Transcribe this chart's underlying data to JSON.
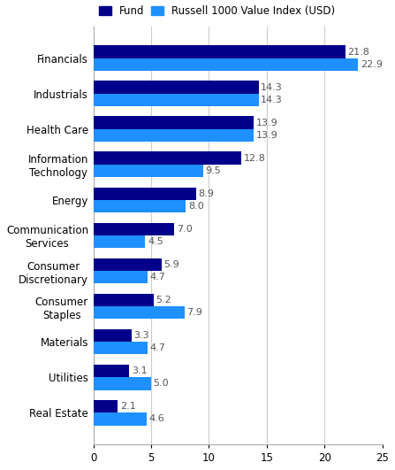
{
  "categories": [
    "Financials",
    "Industrials",
    "Health Care",
    "Information\nTechnology",
    "Energy",
    "Communication\nServices",
    "Consumer\nDiscretionary",
    "Consumer\nStaples",
    "Materials",
    "Utilities",
    "Real Estate"
  ],
  "fund_values": [
    21.8,
    14.3,
    13.9,
    12.8,
    8.9,
    7.0,
    5.9,
    5.2,
    3.3,
    3.1,
    2.1
  ],
  "index_values": [
    22.9,
    14.3,
    13.9,
    9.5,
    8.0,
    4.5,
    4.7,
    7.9,
    4.7,
    5.0,
    4.6
  ],
  "fund_color": "#00008B",
  "index_color": "#1E90FF",
  "bar_height": 0.36,
  "xlim": [
    0,
    25
  ],
  "xticks": [
    0,
    5,
    10,
    15,
    20,
    25
  ],
  "legend_labels": [
    "Fund",
    "Russell 1000 Value Index (USD)"
  ],
  "value_color": "#555555",
  "value_fontsize": 8.0,
  "label_fontsize": 8.5,
  "background_color": "#ffffff",
  "grid_color": "#cccccc"
}
